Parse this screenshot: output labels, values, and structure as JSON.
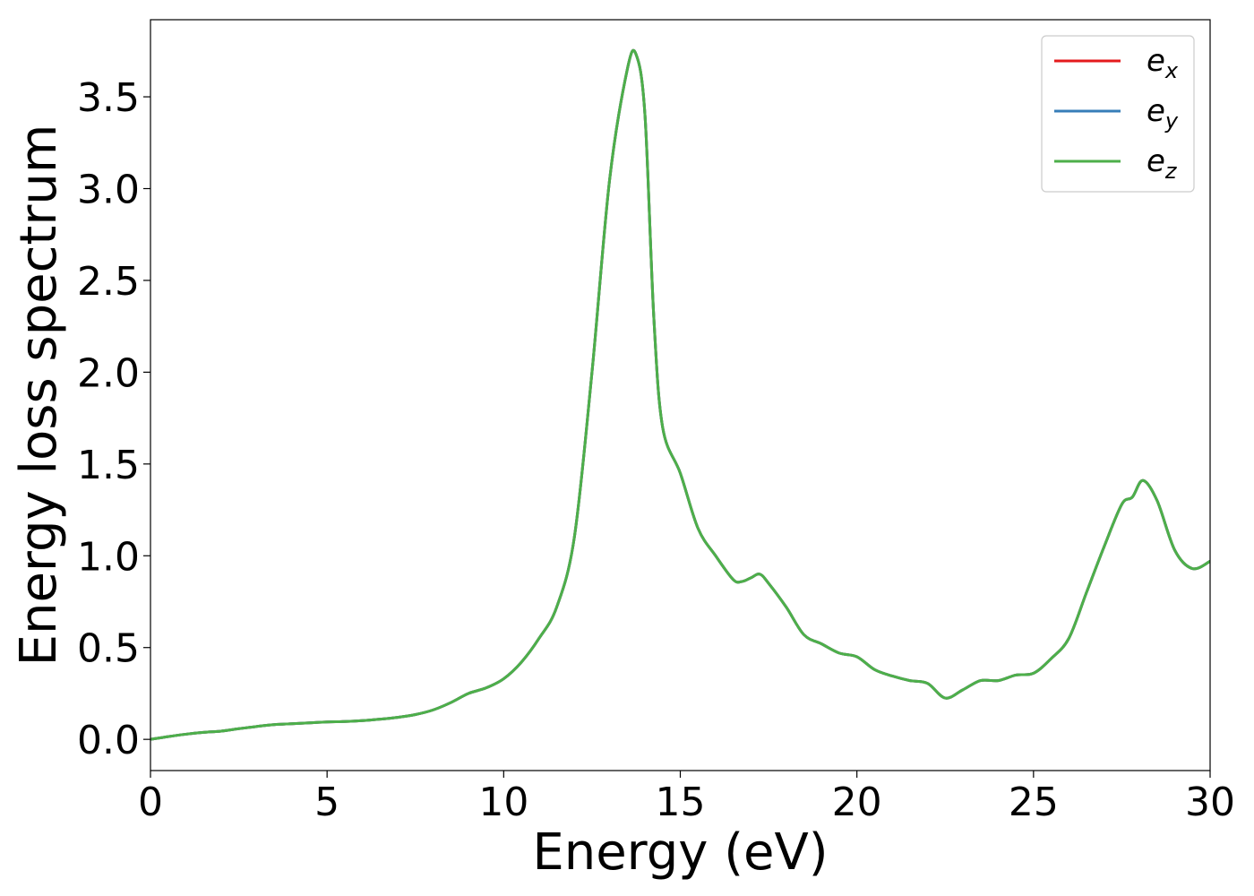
{
  "chart_data": {
    "type": "line",
    "title": "",
    "xlabel": "Energy (eV)",
    "ylabel": "Energy loss spectrum",
    "xlim": [
      0,
      30
    ],
    "ylim": [
      -0.17,
      3.92
    ],
    "xticks": [
      0,
      5,
      10,
      15,
      20,
      25,
      30
    ],
    "yticks": [
      0.0,
      0.5,
      1.0,
      1.5,
      2.0,
      2.5,
      3.0,
      3.5
    ],
    "xtick_labels": [
      "0",
      "5",
      "10",
      "15",
      "20",
      "25",
      "30"
    ],
    "ytick_labels": [
      "0.0",
      "0.5",
      "1.0",
      "1.5",
      "2.0",
      "2.5",
      "3.0",
      "3.5"
    ],
    "grid": false,
    "legend_position": "top-right",
    "x": [
      0,
      0.5,
      1,
      1.5,
      2,
      2.5,
      3,
      3.5,
      4,
      4.5,
      5,
      5.5,
      6,
      6.5,
      7,
      7.5,
      8,
      8.5,
      9,
      9.5,
      10,
      10.5,
      11,
      11.5,
      12,
      12.5,
      13,
      13.5,
      13.75,
      14,
      14.25,
      14.5,
      15,
      15.5,
      16,
      16.5,
      16.75,
      17,
      17.25,
      17.5,
      18,
      18.5,
      19,
      19.5,
      20,
      20.5,
      21,
      21.5,
      22,
      22.5,
      23,
      23.5,
      24,
      24.5,
      25,
      25.5,
      26,
      26.5,
      27,
      27.5,
      27.8,
      28.1,
      28.5,
      29,
      29.5,
      30
    ],
    "series": [
      {
        "name": "e",
        "name_sub": "x",
        "color": "#e41a1c",
        "values": [
          0.0,
          0.015,
          0.028,
          0.038,
          0.045,
          0.058,
          0.07,
          0.08,
          0.085,
          0.09,
          0.095,
          0.097,
          0.102,
          0.11,
          0.12,
          0.135,
          0.16,
          0.2,
          0.25,
          0.28,
          0.33,
          0.42,
          0.55,
          0.72,
          1.1,
          2.0,
          3.05,
          3.65,
          3.73,
          3.4,
          2.3,
          1.7,
          1.45,
          1.15,
          1.0,
          0.87,
          0.86,
          0.88,
          0.9,
          0.85,
          0.72,
          0.57,
          0.52,
          0.47,
          0.45,
          0.38,
          0.345,
          0.32,
          0.305,
          0.225,
          0.27,
          0.32,
          0.32,
          0.35,
          0.36,
          0.44,
          0.55,
          0.8,
          1.05,
          1.28,
          1.32,
          1.41,
          1.3,
          1.03,
          0.93,
          0.97
        ]
      },
      {
        "name": "e",
        "name_sub": "y",
        "color": "#377eb8",
        "values": [
          0.0,
          0.015,
          0.028,
          0.038,
          0.045,
          0.058,
          0.07,
          0.08,
          0.085,
          0.09,
          0.095,
          0.097,
          0.102,
          0.11,
          0.12,
          0.135,
          0.16,
          0.2,
          0.25,
          0.28,
          0.33,
          0.42,
          0.55,
          0.72,
          1.1,
          2.0,
          3.05,
          3.65,
          3.73,
          3.4,
          2.3,
          1.7,
          1.45,
          1.15,
          1.0,
          0.87,
          0.86,
          0.88,
          0.9,
          0.85,
          0.72,
          0.57,
          0.52,
          0.47,
          0.45,
          0.38,
          0.345,
          0.32,
          0.305,
          0.225,
          0.27,
          0.32,
          0.32,
          0.35,
          0.36,
          0.44,
          0.55,
          0.8,
          1.05,
          1.28,
          1.32,
          1.41,
          1.3,
          1.03,
          0.93,
          0.97
        ]
      },
      {
        "name": "e",
        "name_sub": "z",
        "color": "#4daf4a",
        "values": [
          0.0,
          0.015,
          0.028,
          0.038,
          0.045,
          0.058,
          0.07,
          0.08,
          0.085,
          0.09,
          0.095,
          0.097,
          0.102,
          0.11,
          0.12,
          0.135,
          0.16,
          0.2,
          0.25,
          0.28,
          0.33,
          0.42,
          0.55,
          0.72,
          1.1,
          2.0,
          3.05,
          3.65,
          3.73,
          3.4,
          2.3,
          1.7,
          1.45,
          1.15,
          1.0,
          0.87,
          0.86,
          0.88,
          0.9,
          0.85,
          0.72,
          0.57,
          0.52,
          0.47,
          0.45,
          0.38,
          0.345,
          0.32,
          0.305,
          0.225,
          0.27,
          0.32,
          0.32,
          0.35,
          0.36,
          0.44,
          0.55,
          0.8,
          1.05,
          1.28,
          1.32,
          1.41,
          1.3,
          1.03,
          0.93,
          0.97
        ]
      }
    ]
  }
}
